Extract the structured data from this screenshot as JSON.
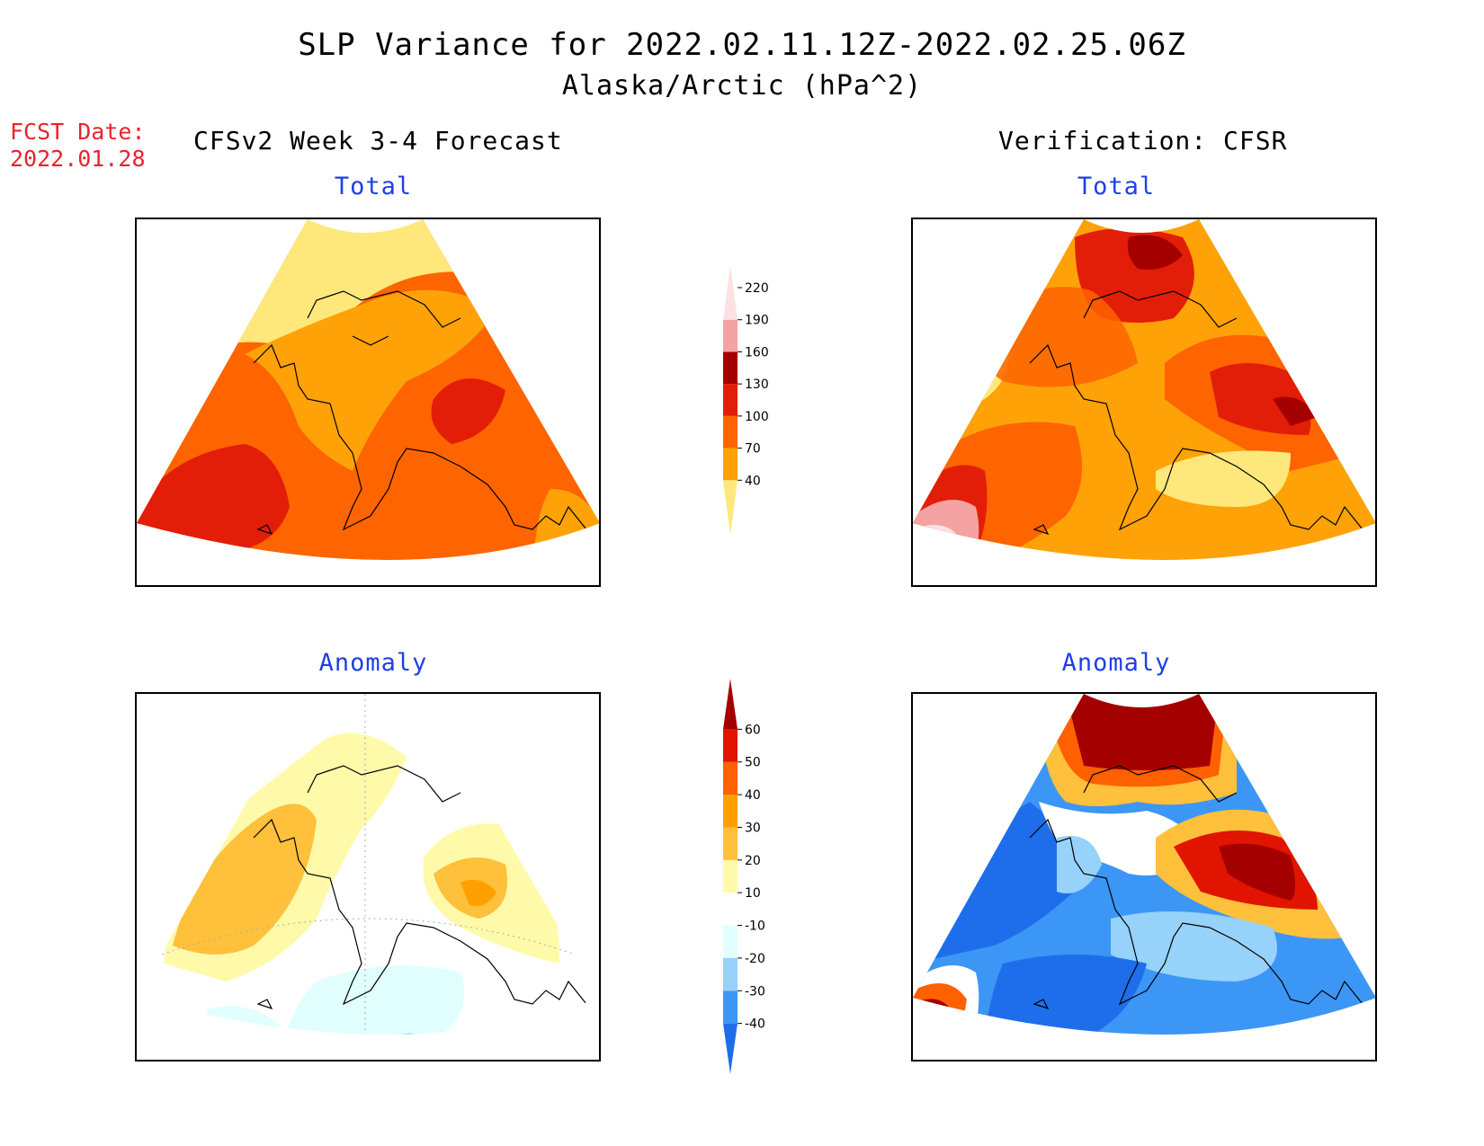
{
  "title": {
    "line1": "SLP Variance for 2022.02.11.12Z-2022.02.25.06Z",
    "line2": "Alaska/Arctic (hPa^2)"
  },
  "forecast_date": {
    "label": "FCST Date:",
    "value": "2022.01.28"
  },
  "columns": {
    "left_title": "CFSv2 Week 3-4 Forecast",
    "right_title": "Verification: CFSR"
  },
  "panels": {
    "forecast_total": {
      "title": "Total"
    },
    "verification_total": {
      "title": "Total"
    },
    "forecast_anomaly": {
      "title": "Anomaly"
    },
    "verification_anomaly": {
      "title": "Anomaly"
    }
  },
  "colorbars": {
    "total": {
      "levels": [
        "40",
        "70",
        "100",
        "130",
        "160",
        "190",
        "220"
      ],
      "colors": [
        "#fee87c",
        "#fea208",
        "#fe6400",
        "#e21e08",
        "#a50000",
        "#f4a2a2",
        "#fbe1e1"
      ]
    },
    "anomaly": {
      "levels": [
        "-40",
        "-30",
        "-20",
        "-10",
        "10",
        "20",
        "30",
        "40",
        "50",
        "60"
      ],
      "colors": [
        "#1e6eeb",
        "#3c96f5",
        "#96d2fa",
        "#e0fffe",
        "#ffffff",
        "#fffaaa",
        "#ffc03c",
        "#ffa000",
        "#ff6000",
        "#e11400",
        "#a50000"
      ]
    }
  }
}
